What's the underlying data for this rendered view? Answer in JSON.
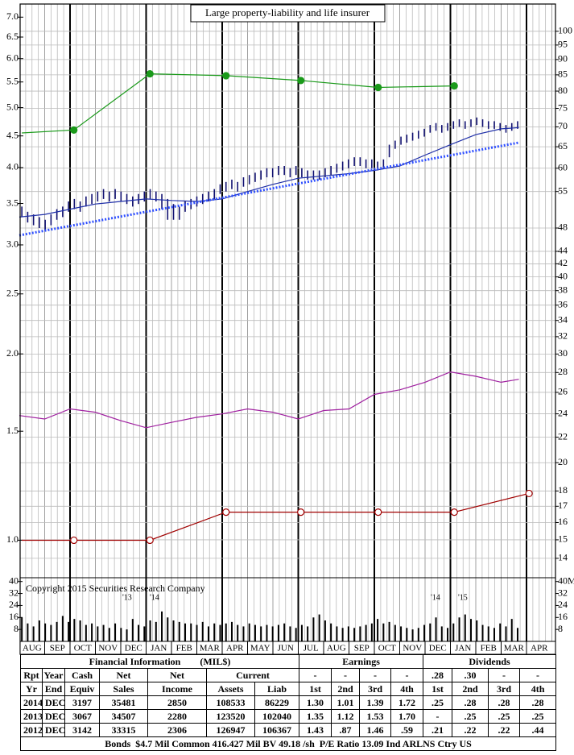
{
  "chart_data": [
    {
      "type": "stock",
      "title": "Large property-liability and life insurer",
      "categories": [
        "AUG",
        "SEP",
        "OCT",
        "NOV",
        "DEC",
        "JAN",
        "FEB",
        "MAR",
        "APR",
        "MAY",
        "JUN",
        "JUL",
        "AUG",
        "SEP",
        "OCT",
        "NOV",
        "DEC",
        "JAN",
        "FEB",
        "MAR",
        "APR"
      ],
      "xlim": [
        0,
        21
      ],
      "ylim": [
        0.875,
        7.35
      ],
      "yticks": [
        {
          "value": 7,
          "label": "7.0"
        },
        6.5,
        {
          "value": 6,
          "label": "6.0"
        },
        5.5,
        {
          "value": 5,
          "label": "5.0"
        },
        4.5,
        {
          "value": 4,
          "label": "4.0"
        },
        3.5,
        {
          "value": 3,
          "label": "3.0"
        },
        2.5,
        {
          "value": 2,
          "label": "2.0"
        },
        1.5,
        {
          "value": 1,
          "label": "1.0"
        }
      ],
      "y2lim": [
        13.1,
        110.7
      ],
      "y2ticks": [
        100,
        95,
        90,
        85,
        80,
        75,
        70,
        65,
        60,
        55,
        48,
        44,
        42,
        40,
        38,
        36,
        34,
        32,
        30,
        28,
        26,
        24,
        22,
        20,
        18,
        17,
        16,
        15,
        14
      ],
      "log_scale": true,
      "grid": true,
      "price_bars": {
        "color": "#101070",
        "axis": "y2",
        "high": [
          52,
          51,
          50.5,
          50,
          49.5,
          50.5,
          51.5,
          52,
          53,
          53.5,
          53,
          54,
          54.5,
          55,
          55.5,
          55,
          55.5,
          55,
          54.5,
          54,
          54.5,
          55,
          55.5,
          55,
          54.5,
          53.5,
          52.5,
          52,
          53,
          53.5,
          54,
          54.5,
          55,
          55.5,
          56.5,
          57,
          57.5,
          57,
          58,
          58.5,
          59,
          59.5,
          60,
          60,
          60.5,
          60.5,
          60,
          60.5,
          60,
          59.5,
          59.5,
          59.5,
          60,
          60.5,
          61,
          61.5,
          62,
          62.5,
          62.5,
          62,
          62,
          61.5,
          62,
          65.5,
          66.5,
          67.5,
          68,
          68.5,
          69,
          69.5,
          70.5,
          71,
          70.5,
          71,
          71.5,
          72,
          71.5,
          72,
          72.5,
          72,
          71.5,
          71.5,
          71,
          70.5,
          71,
          71.5
        ],
        "low": [
          50,
          49,
          48.5,
          48,
          47.5,
          48.5,
          49.5,
          50,
          51,
          51.5,
          51,
          52,
          52.5,
          53,
          53.5,
          53,
          53.5,
          53,
          52.5,
          52,
          52.5,
          53,
          53.5,
          53,
          51.5,
          49.5,
          49.5,
          49.5,
          51,
          51.5,
          52,
          52.5,
          53,
          53.5,
          54.5,
          55,
          55.5,
          55,
          56,
          56.5,
          57,
          57.5,
          58,
          58,
          58.5,
          58.5,
          58,
          58.5,
          58,
          57.5,
          57.5,
          57.5,
          58,
          58.5,
          59,
          59.5,
          60,
          60.5,
          60.5,
          60,
          60,
          59.5,
          60,
          62.5,
          64.5,
          65.5,
          66,
          66.5,
          67,
          67.5,
          68.5,
          69,
          68.5,
          69,
          69.5,
          70,
          69.5,
          70,
          70.5,
          70,
          69.5,
          69.5,
          69,
          68.5,
          69,
          69.5
        ]
      },
      "series": [
        {
          "color": "#1f2fa8",
          "axis": "y2",
          "x": [
            0,
            1,
            2,
            3,
            4,
            5,
            6,
            7,
            8,
            9,
            10,
            11,
            12,
            13,
            14,
            15,
            16,
            17,
            18,
            19,
            19.7
          ],
          "values": [
            50,
            50.5,
            51.5,
            52.5,
            53,
            53.5,
            53.2,
            53,
            53.5,
            55,
            56.5,
            57.8,
            58.3,
            58.8,
            59.5,
            60.5,
            63,
            65.5,
            68,
            69.5,
            69.8
          ]
        },
        {
          "color": "#3050ff",
          "axis": "y2",
          "style": "dotted",
          "x": [
            0,
            19.7
          ],
          "values": [
            46.7,
            66
          ]
        },
        {
          "color": "#1a9a1a",
          "marker": "filled",
          "x": [
            0.1,
            2.15,
            5.15,
            8.15,
            11.1,
            14.15,
            17.15
          ],
          "values": [
            4.55,
            4.6,
            5.67,
            5.63,
            5.53,
            5.39,
            5.42
          ]
        },
        {
          "color": "#a00000",
          "marker": "hollow",
          "x": [
            0.1,
            2.15,
            5.15,
            8.15,
            11.1,
            14.15,
            17.15,
            20.1
          ],
          "values": [
            1,
            1,
            1,
            1.11,
            1.11,
            1.11,
            1.11,
            1.19
          ]
        },
        {
          "color": "#a020a0",
          "x": [
            0,
            1,
            2,
            3,
            4,
            5,
            6,
            7,
            8,
            9,
            10,
            11,
            12,
            13,
            14,
            15,
            16,
            17,
            18,
            19,
            19.7
          ],
          "values": [
            1.59,
            1.57,
            1.63,
            1.61,
            1.56,
            1.52,
            1.55,
            1.58,
            1.6,
            1.63,
            1.61,
            1.57,
            1.62,
            1.63,
            1.72,
            1.75,
            1.8,
            1.87,
            1.84,
            1.8,
            1.82
          ]
        }
      ]
    },
    {
      "type": "bar",
      "annotations": [
        "Copyright 2015 Securities Research Company",
        "'13",
        "'14",
        "'14",
        "'15"
      ],
      "values": [
        16,
        12,
        10,
        14,
        12,
        11,
        13,
        17,
        13,
        15,
        14,
        11,
        12,
        10,
        11,
        9,
        12,
        9,
        8,
        15,
        11,
        10,
        14,
        13,
        20,
        16,
        14,
        13,
        12,
        12,
        11,
        13,
        10,
        12,
        11,
        12,
        13,
        11,
        10,
        12,
        11,
        10,
        11,
        10,
        11,
        12,
        10,
        9,
        11,
        10,
        16,
        18,
        14,
        12,
        10,
        9,
        10,
        9,
        10,
        11,
        12,
        15,
        12,
        13,
        11,
        10,
        9,
        8,
        9,
        11,
        12,
        16,
        10,
        9,
        12,
        16,
        18,
        15,
        14,
        11,
        10,
        9,
        12,
        10,
        15,
        9
      ],
      "color": "#000000",
      "ylim": [
        0,
        42
      ],
      "yticks": [
        40,
        32,
        24,
        16,
        8
      ],
      "y2lim": [
        0,
        42
      ],
      "y2ticks": [
        {
          "value": 40,
          "label": "40M"
        },
        32,
        24,
        16,
        8
      ]
    }
  ],
  "table": {
    "title": "Financial Information",
    "unit": "(MIL$)",
    "earnings_title": "Earnings",
    "dividends_title": "Dividends",
    "header": [
      [
        "Rpt",
        "Year",
        "Cash",
        "Net",
        "Net",
        "Current",
        "-",
        "-",
        "-",
        "-",
        ".28",
        ".30",
        "-",
        "-"
      ],
      [
        "Yr",
        "End",
        "Equiv",
        "Sales",
        "Income",
        "Assets",
        "Liab",
        "1st",
        "2nd",
        "3rd",
        "4th",
        "1st",
        "2nd",
        "3rd",
        "4th"
      ]
    ],
    "rows": [
      [
        "2014",
        "DEC",
        "3197",
        "35481",
        "2850",
        "108533",
        "86229",
        "1.30",
        "1.01",
        "1.39",
        "1.72",
        ".25",
        ".28",
        ".28",
        ".28"
      ],
      [
        "2013",
        "DEC",
        "3067",
        "34507",
        "2280",
        "123520",
        "102040",
        "1.35",
        "1.12",
        "1.53",
        "1.70",
        "-",
        ".25",
        ".25",
        ".25"
      ],
      [
        "2012",
        "DEC",
        "3142",
        "33315",
        "2306",
        "126947",
        "106367",
        "1.43",
        ".87",
        "1.46",
        ".59",
        ".21",
        ".22",
        ".22",
        ".44"
      ]
    ],
    "footer": "Bonds  $4.7 Mil Common 416.427 Mil BV 49.18 /sh  P/E Ratio 13.09 Ind ARLNS Ctry US"
  }
}
